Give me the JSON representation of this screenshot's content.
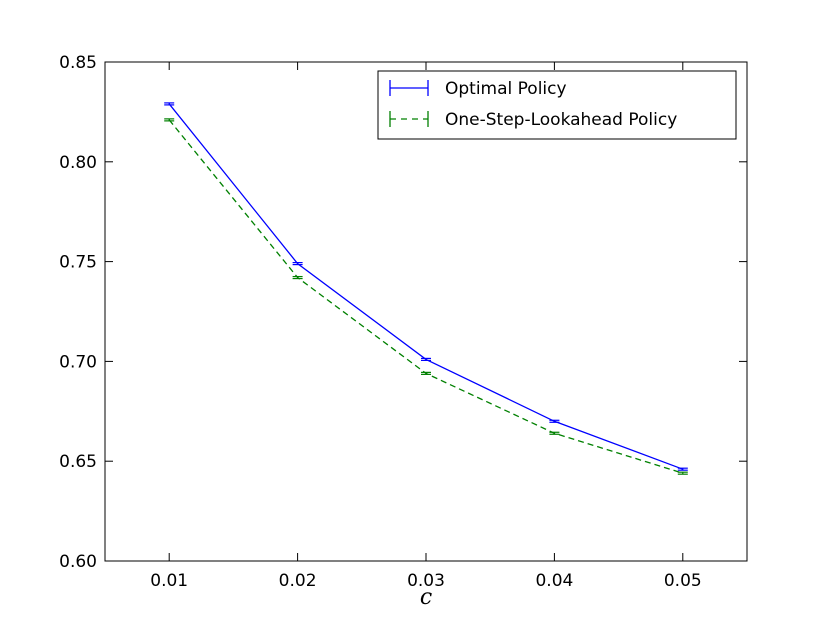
{
  "chart_data": {
    "type": "line",
    "title": "",
    "xlabel": "c",
    "ylabel": "",
    "x": [
      0.01,
      0.02,
      0.03,
      0.04,
      0.05
    ],
    "xlim": [
      0.005,
      0.055
    ],
    "ylim": [
      0.6,
      0.85
    ],
    "xticks": [
      "0.01",
      "0.02",
      "0.03",
      "0.04",
      "0.05"
    ],
    "yticks": [
      "0.60",
      "0.65",
      "0.70",
      "0.75",
      "0.80",
      "0.85"
    ],
    "grid": false,
    "legend_position": "top-right",
    "series": [
      {
        "name": "Optimal Policy",
        "color": "#0000ff",
        "style": "solid",
        "values": [
          0.829,
          0.749,
          0.701,
          0.67,
          0.646
        ],
        "error": [
          0.0005,
          0.0005,
          0.0005,
          0.0005,
          0.0005
        ]
      },
      {
        "name": "One-Step-Lookahead Policy",
        "color": "#008000",
        "style": "dashed",
        "values": [
          0.821,
          0.742,
          0.694,
          0.664,
          0.644
        ],
        "error": [
          0.0005,
          0.0005,
          0.0005,
          0.0005,
          0.0005
        ]
      }
    ]
  }
}
